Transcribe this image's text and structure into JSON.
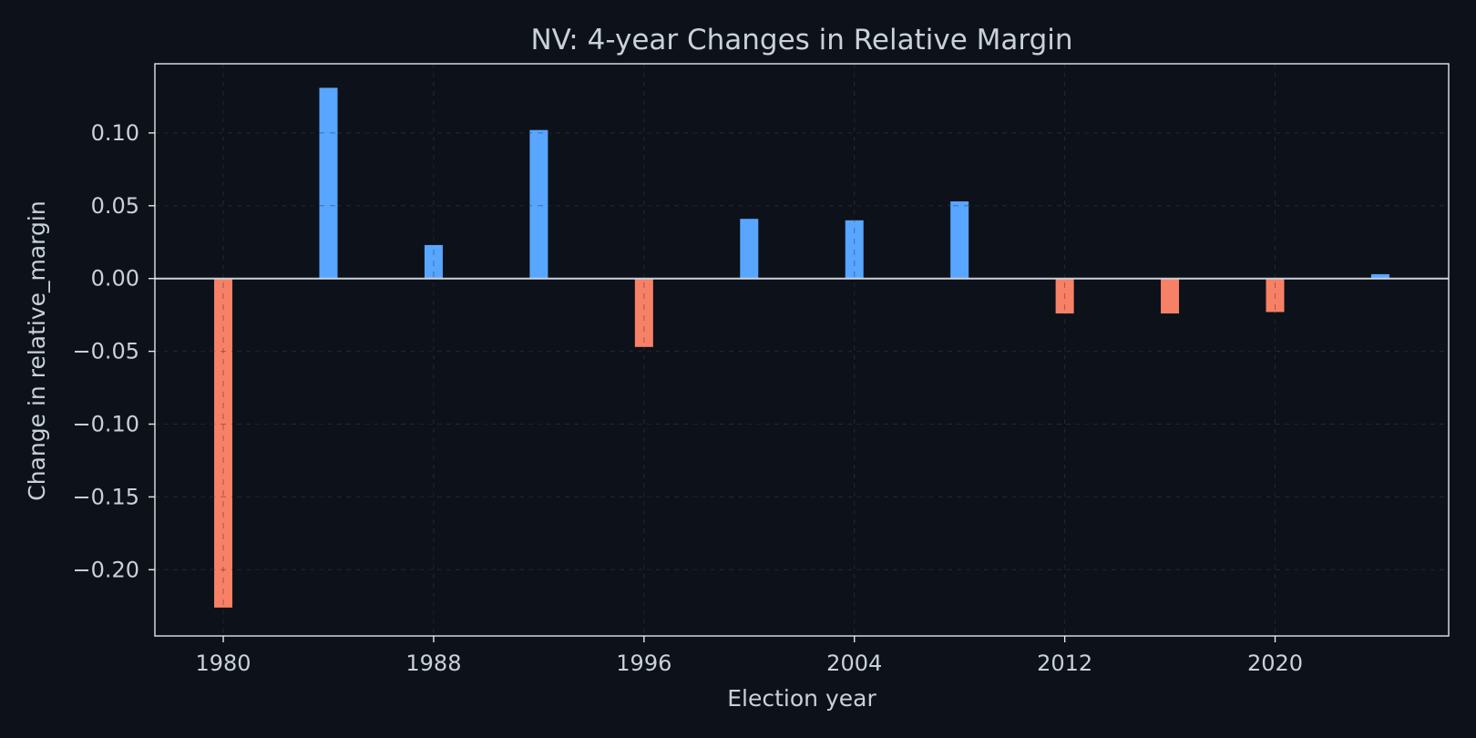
{
  "chart_data": {
    "type": "bar",
    "title": "NV: 4-year Changes in Relative Margin",
    "xlabel": "Election year",
    "ylabel": "Change in relative_margin",
    "x": [
      1980,
      1984,
      1988,
      1992,
      1996,
      2000,
      2004,
      2008,
      2012,
      2016,
      2020,
      2024
    ],
    "values": [
      -0.226,
      0.131,
      0.023,
      0.102,
      -0.047,
      0.041,
      0.04,
      0.053,
      -0.024,
      -0.024,
      -0.023,
      0.003
    ],
    "x_ticks": [
      1980,
      1988,
      1996,
      2004,
      2012,
      2020
    ],
    "x_tick_labels": [
      "1980",
      "1988",
      "1996",
      "2004",
      "2012",
      "2020"
    ],
    "y_ticks": [
      -0.2,
      -0.15,
      -0.1,
      -0.05,
      0.0,
      0.05,
      0.1
    ],
    "y_tick_labels": [
      "−0.20",
      "−0.15",
      "−0.10",
      "−0.05",
      "0.00",
      "0.05",
      "0.10"
    ],
    "xlim": [
      1977.4,
      2026.6
    ],
    "ylim": [
      -0.2455,
      0.1475
    ],
    "grid": true,
    "colors": {
      "positive": "#58a6ff",
      "negative": "#f78166",
      "background": "#0d111a",
      "text": "#c9d1d9"
    }
  }
}
